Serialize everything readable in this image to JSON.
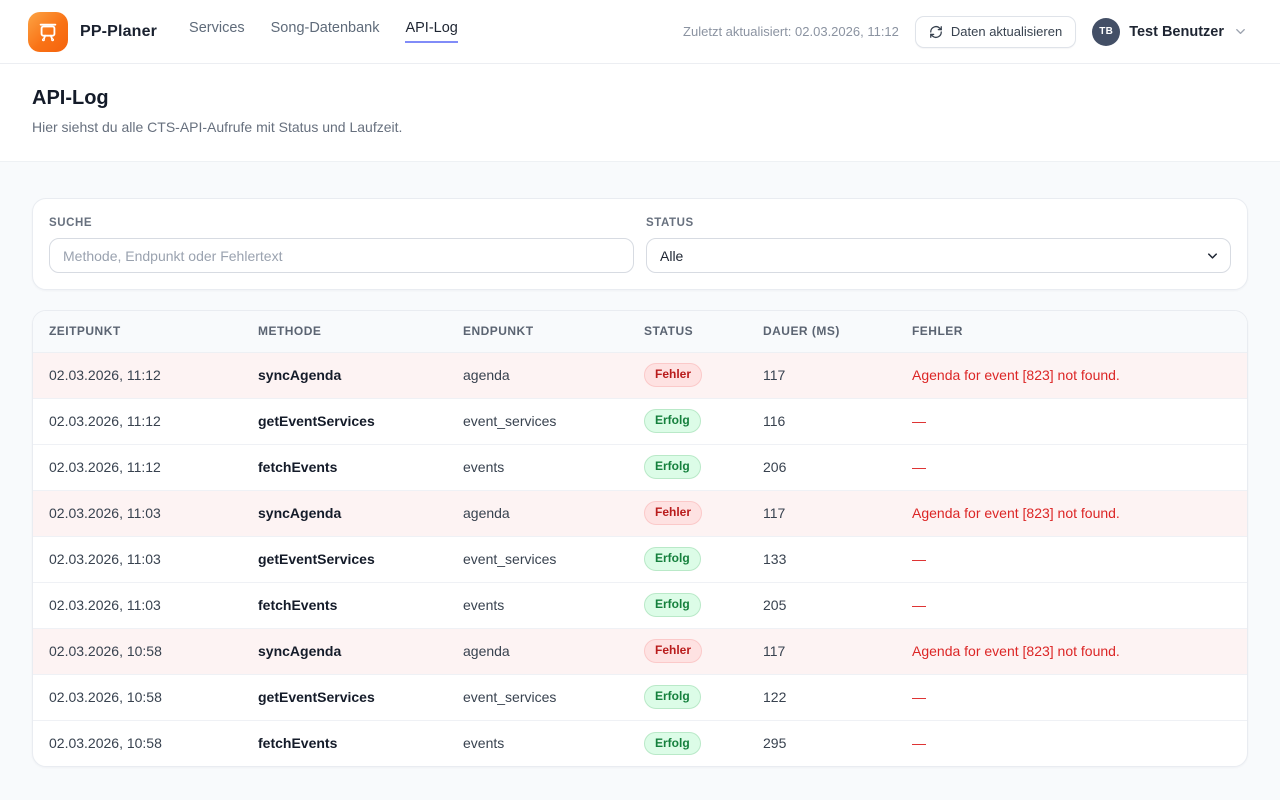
{
  "header": {
    "brand": "PP-Planer",
    "nav": [
      {
        "label": "Services",
        "active": false
      },
      {
        "label": "Song-Datenbank",
        "active": false
      },
      {
        "label": "API-Log",
        "active": true
      }
    ],
    "last_updated": "Zuletzt aktualisiert: 02.03.2026, 11:12",
    "refresh_button_label": "Daten aktualisieren",
    "user": {
      "initials": "TB",
      "name": "Test Benutzer"
    }
  },
  "page": {
    "title": "API-Log",
    "subtitle": "Hier siehst du alle CTS-API-Aufrufe mit Status und Laufzeit."
  },
  "filters": {
    "search": {
      "label": "SUCHE",
      "placeholder": "Methode, Endpunkt oder Fehlertext",
      "value": ""
    },
    "status": {
      "label": "STATUS",
      "selected": "Alle"
    }
  },
  "table": {
    "columns": [
      "ZEITPUNKT",
      "METHODE",
      "ENDPUNKT",
      "STATUS",
      "DAUER (MS)",
      "FEHLER"
    ],
    "status_badges": {
      "error": "Fehler",
      "success": "Erfolg"
    },
    "rows": [
      {
        "zeitpunkt": "02.03.2026, 11:12",
        "methode": "syncAgenda",
        "endpunkt": "agenda",
        "status": "Fehler",
        "dauer": "117",
        "fehler": "Agenda for event [823] not found."
      },
      {
        "zeitpunkt": "02.03.2026, 11:12",
        "methode": "getEventServices",
        "endpunkt": "event_services",
        "status": "Erfolg",
        "dauer": "116",
        "fehler": "—"
      },
      {
        "zeitpunkt": "02.03.2026, 11:12",
        "methode": "fetchEvents",
        "endpunkt": "events",
        "status": "Erfolg",
        "dauer": "206",
        "fehler": "—"
      },
      {
        "zeitpunkt": "02.03.2026, 11:03",
        "methode": "syncAgenda",
        "endpunkt": "agenda",
        "status": "Fehler",
        "dauer": "117",
        "fehler": "Agenda for event [823] not found."
      },
      {
        "zeitpunkt": "02.03.2026, 11:03",
        "methode": "getEventServices",
        "endpunkt": "event_services",
        "status": "Erfolg",
        "dauer": "133",
        "fehler": "—"
      },
      {
        "zeitpunkt": "02.03.2026, 11:03",
        "methode": "fetchEvents",
        "endpunkt": "events",
        "status": "Erfolg",
        "dauer": "205",
        "fehler": "—"
      },
      {
        "zeitpunkt": "02.03.2026, 10:58",
        "methode": "syncAgenda",
        "endpunkt": "agenda",
        "status": "Fehler",
        "dauer": "117",
        "fehler": "Agenda for event [823] not found."
      },
      {
        "zeitpunkt": "02.03.2026, 10:58",
        "methode": "getEventServices",
        "endpunkt": "event_services",
        "status": "Erfolg",
        "dauer": "122",
        "fehler": "—"
      },
      {
        "zeitpunkt": "02.03.2026, 10:58",
        "methode": "fetchEvents",
        "endpunkt": "events",
        "status": "Erfolg",
        "dauer": "295",
        "fehler": "—"
      }
    ]
  },
  "colors": {
    "accent_underline": "#818cf8",
    "logo_orange": "#f97316",
    "error_text": "#dc2626",
    "error_row_bg": "#fdf3f3",
    "badge_error_bg": "#fee2e2",
    "badge_success_bg": "#dcfce7",
    "content_bg": "#f8fafc"
  }
}
